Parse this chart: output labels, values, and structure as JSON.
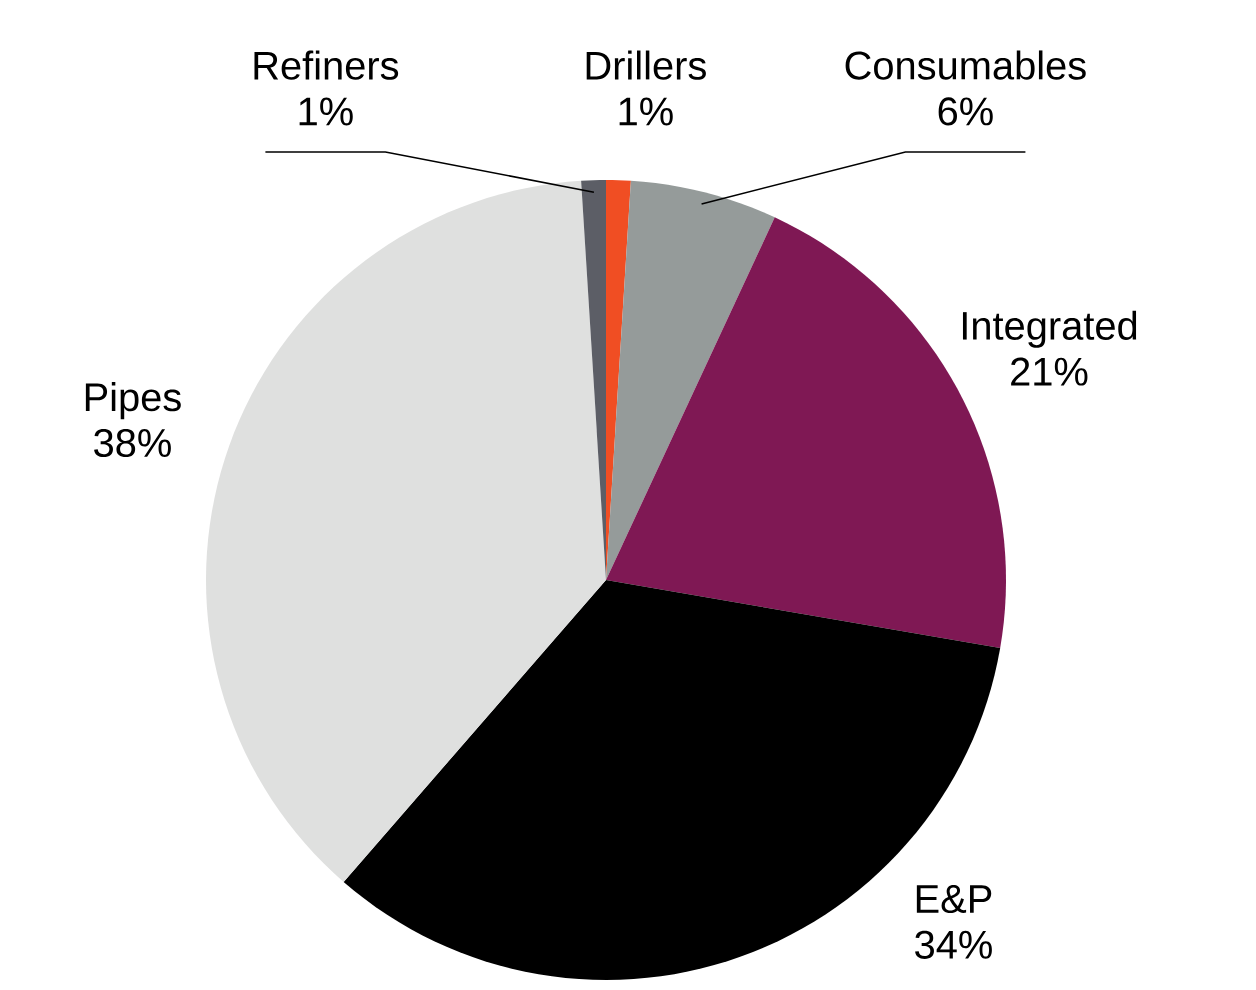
{
  "chart_data": {
    "type": "pie",
    "categories": [
      "Drillers",
      "Consumables",
      "Integrated",
      "E&P",
      "Pipes",
      "Refiners"
    ],
    "values": [
      1,
      6,
      21,
      34,
      38,
      1
    ],
    "value_labels": [
      "1%",
      "6%",
      "21%",
      "34%",
      "38%",
      "1%"
    ],
    "colors": [
      "#f04e23",
      "#959b9a",
      "#7f1854",
      "#000000",
      "#dfe0df",
      "#5c5e66"
    ]
  }
}
